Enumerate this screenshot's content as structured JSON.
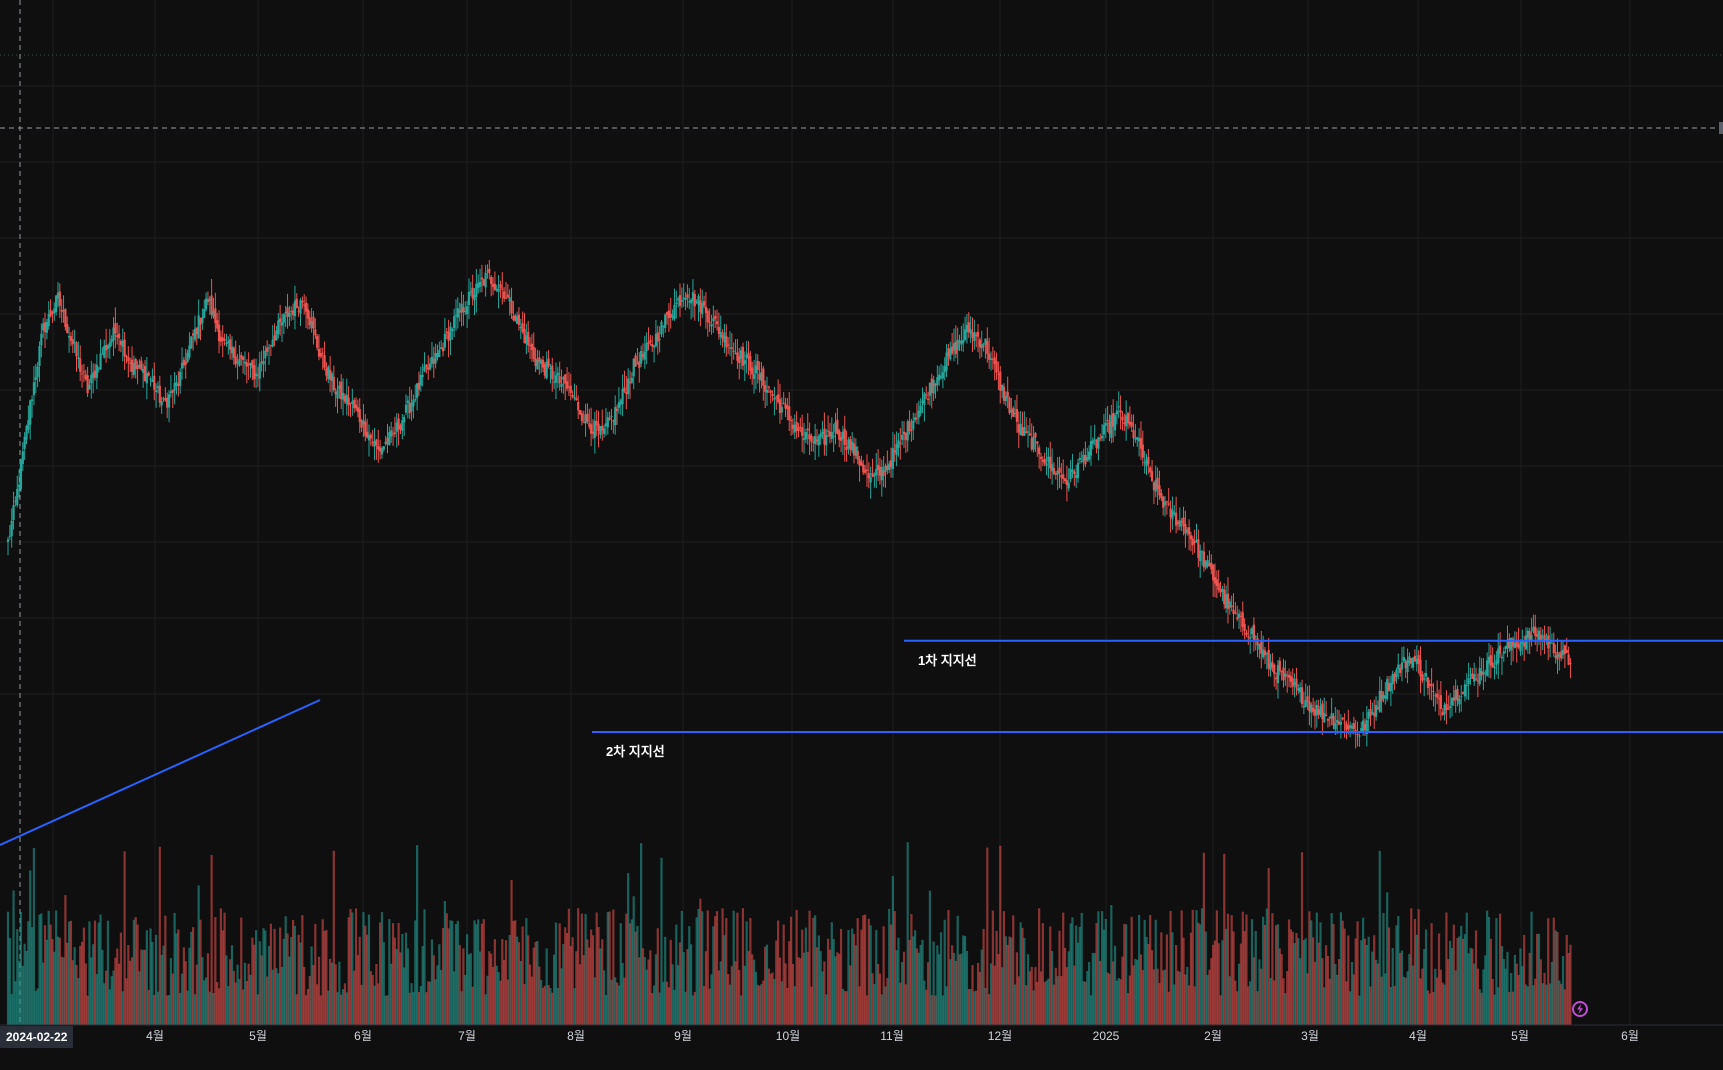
{
  "chart_data": {
    "type": "candlestick",
    "title": "",
    "x_axis": {
      "labels": [
        "4월",
        "5월",
        "6월",
        "7월",
        "8월",
        "9월",
        "10월",
        "11월",
        "12월",
        "2025",
        "2월",
        "3월",
        "4월",
        "5월",
        "6월"
      ],
      "cursor_date": "2024-02-22"
    },
    "y_axis": {
      "visible": false,
      "grid": true
    },
    "price_range": [
      0,
      100
    ],
    "series": [
      {
        "kind": "price",
        "values": [
          [
            3,
            30
          ],
          [
            7,
            35
          ],
          [
            15,
            48
          ],
          [
            22,
            58
          ],
          [
            30,
            62
          ],
          [
            38,
            56
          ],
          [
            46,
            50
          ],
          [
            54,
            55
          ],
          [
            62,
            58
          ],
          [
            70,
            53
          ],
          [
            79,
            52
          ],
          [
            87,
            48
          ],
          [
            95,
            51
          ],
          [
            103,
            57
          ],
          [
            111,
            62
          ],
          [
            119,
            56
          ],
          [
            128,
            54
          ],
          [
            137,
            52
          ],
          [
            146,
            57
          ],
          [
            154,
            60
          ],
          [
            163,
            62
          ],
          [
            171,
            55
          ],
          [
            180,
            50
          ],
          [
            189,
            48
          ],
          [
            196,
            45
          ],
          [
            203,
            42
          ],
          [
            211,
            44
          ],
          [
            220,
            48
          ],
          [
            228,
            52
          ],
          [
            236,
            55
          ],
          [
            244,
            59
          ],
          [
            252,
            62
          ],
          [
            262,
            65
          ],
          [
            271,
            63
          ],
          [
            280,
            58
          ],
          [
            288,
            54
          ],
          [
            297,
            52
          ],
          [
            306,
            50
          ],
          [
            315,
            46
          ],
          [
            324,
            44
          ],
          [
            333,
            48
          ],
          [
            341,
            53
          ],
          [
            351,
            56
          ],
          [
            360,
            60
          ],
          [
            369,
            63
          ],
          [
            378,
            61
          ],
          [
            387,
            58
          ],
          [
            396,
            55
          ],
          [
            405,
            53
          ],
          [
            414,
            50
          ],
          [
            423,
            47
          ],
          [
            432,
            44
          ],
          [
            441,
            43
          ],
          [
            450,
            45
          ],
          [
            460,
            42
          ],
          [
            469,
            38
          ],
          [
            478,
            40
          ],
          [
            487,
            44
          ],
          [
            496,
            48
          ],
          [
            505,
            52
          ],
          [
            513,
            55
          ],
          [
            522,
            58
          ],
          [
            531,
            56
          ],
          [
            540,
            50
          ],
          [
            549,
            45
          ],
          [
            557,
            43
          ],
          [
            566,
            40
          ],
          [
            575,
            38
          ],
          [
            584,
            41
          ],
          [
            594,
            44
          ],
          [
            603,
            47
          ],
          [
            612,
            44
          ],
          [
            621,
            38
          ],
          [
            630,
            34
          ],
          [
            639,
            32
          ],
          [
            648,
            28
          ],
          [
            657,
            24
          ],
          [
            666,
            20
          ],
          [
            675,
            18
          ],
          [
            684,
            14
          ],
          [
            692,
            12
          ],
          [
            701,
            10
          ],
          [
            709,
            8
          ],
          [
            718,
            7
          ],
          [
            726,
            6
          ],
          [
            733,
            5
          ],
          [
            739,
            7
          ],
          [
            745,
            10
          ],
          [
            753,
            13
          ],
          [
            761,
            15
          ],
          [
            769,
            12
          ],
          [
            777,
            8
          ],
          [
            785,
            10
          ],
          [
            794,
            12
          ],
          [
            803,
            14
          ],
          [
            812,
            16
          ],
          [
            820,
            17
          ],
          [
            829,
            18
          ],
          [
            838,
            16
          ],
          [
            847,
            14
          ]
        ]
      }
    ],
    "support_lines": [
      {
        "label": "1차 지지선",
        "price": 17
      },
      {
        "label": "2차 지지선",
        "price": 5
      }
    ],
    "colors": {
      "up": "#26a69a",
      "down": "#ef5350",
      "support_line": "#2962ff",
      "background": "#0f0f0f",
      "grid": "#1e1e1e",
      "text": "#d1d4dc"
    }
  },
  "labels": {
    "support_1": "1차 지지선",
    "support_2": "2차 지지선",
    "cursor_date": "2024-02-22"
  },
  "icons": {
    "bolt": "lightning-icon"
  }
}
